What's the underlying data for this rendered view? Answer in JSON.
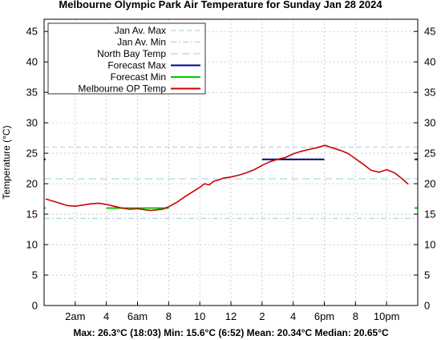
{
  "chart_data": {
    "type": "line",
    "title": "Melbourne Olympic Park Air Temperature  for Sunday Jan 28 2024",
    "ylabel": "Temperature (°C)",
    "xlabel": "",
    "ylim": [
      0,
      47
    ],
    "xlim": [
      0,
      24
    ],
    "yticks": [
      0,
      5,
      10,
      15,
      20,
      25,
      30,
      35,
      40,
      45
    ],
    "xticks": [
      {
        "hour": 2,
        "label": "2am"
      },
      {
        "hour": 4,
        "label": "4"
      },
      {
        "hour": 6,
        "label": "6am"
      },
      {
        "hour": 8,
        "label": "8"
      },
      {
        "hour": 10,
        "label": "10"
      },
      {
        "hour": 12,
        "label": "12"
      },
      {
        "hour": 14,
        "label": "2"
      },
      {
        "hour": 16,
        "label": "4"
      },
      {
        "hour": 18,
        "label": "6pm"
      },
      {
        "hour": 20,
        "label": "8"
      },
      {
        "hour": 22,
        "label": "10pm"
      }
    ],
    "grid": true,
    "legend_position": "top-left",
    "stats": "Max: 26.3°C (18:03) Min: 15.6°C (6:52) Mean: 20.34°C Median: 20.65°C",
    "series": [
      {
        "name": "Jan Av. Max",
        "kind": "hline",
        "value": 26.0,
        "color": "#add8e6",
        "dash": "6,4"
      },
      {
        "name": "Jan Av. Min",
        "kind": "hline",
        "value": 14.3,
        "color": "#add8e6",
        "dash": "7,3,2,3"
      },
      {
        "name": "North Bay Temp",
        "kind": "hline",
        "value": 20.8,
        "color": "#add8e6",
        "dash": "9,5"
      },
      {
        "name": "Forecast Max",
        "kind": "segments",
        "color": "#00008b",
        "segments": [
          [
            -0.3,
            0.1,
            24.0
          ],
          [
            14.0,
            18.0,
            24.0
          ],
          [
            23.8,
            24.3,
            24.0
          ]
        ]
      },
      {
        "name": "Forecast Min",
        "kind": "segments",
        "color": "#00cc00",
        "segments": [
          [
            -0.3,
            0.1,
            16.0
          ],
          [
            4.0,
            8.0,
            16.0
          ],
          [
            23.8,
            24.3,
            16.0
          ]
        ]
      },
      {
        "name": "Melbourne OP Temp",
        "kind": "line",
        "color": "#cc0000",
        "x": [
          0.1,
          0.5,
          1.0,
          1.5,
          2.0,
          2.5,
          3.0,
          3.5,
          4.0,
          4.5,
          5.0,
          5.5,
          6.0,
          6.5,
          6.87,
          7.2,
          7.6,
          8.0,
          8.5,
          9.0,
          9.5,
          10.0,
          10.3,
          10.6,
          10.9,
          11.2,
          11.5,
          12.0,
          12.5,
          13.0,
          13.5,
          14.0,
          14.5,
          15.0,
          15.5,
          16.0,
          16.5,
          17.0,
          17.5,
          18.05,
          18.5,
          19.0,
          19.5,
          20.0,
          20.5,
          21.0,
          21.5,
          22.0,
          22.5,
          23.0,
          23.4
        ],
        "y": [
          17.5,
          17.2,
          16.8,
          16.4,
          16.3,
          16.5,
          16.7,
          16.8,
          16.6,
          16.3,
          16.0,
          15.8,
          15.9,
          15.7,
          15.6,
          15.7,
          15.8,
          16.2,
          16.9,
          17.8,
          18.6,
          19.4,
          20.0,
          19.8,
          20.4,
          20.6,
          20.9,
          21.1,
          21.4,
          21.8,
          22.3,
          23.0,
          23.6,
          24.0,
          24.3,
          24.9,
          25.3,
          25.6,
          25.9,
          26.3,
          25.9,
          25.5,
          25.0,
          24.1,
          23.2,
          22.2,
          21.9,
          22.3,
          21.8,
          20.8,
          19.9
        ]
      }
    ]
  }
}
